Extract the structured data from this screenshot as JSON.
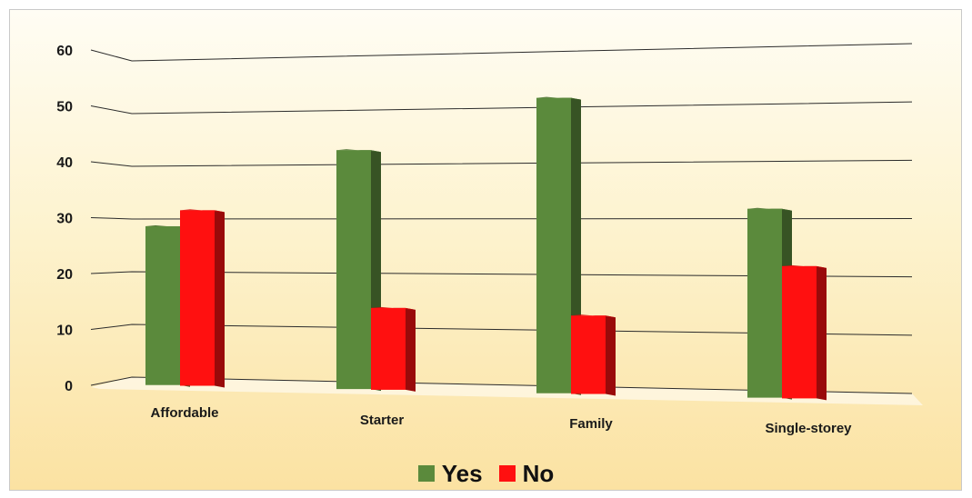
{
  "chart_data": {
    "type": "bar",
    "title": "",
    "xlabel": "",
    "ylabel": "",
    "categories": [
      "Affordable",
      "Starter",
      "Family",
      "Single-storey"
    ],
    "series": [
      {
        "name": "Yes",
        "color": "#5b8a3c",
        "values": [
          30,
          44,
          53,
          33
        ]
      },
      {
        "name": "No",
        "color": "#ff1010",
        "values": [
          33,
          15,
          14,
          23
        ]
      }
    ],
    "ylim": [
      0,
      60
    ],
    "yticks": [
      "0",
      "10",
      "20",
      "30",
      "40",
      "50",
      "60"
    ],
    "grid": true,
    "legend_position": "bottom",
    "style": "3d-perspective"
  }
}
